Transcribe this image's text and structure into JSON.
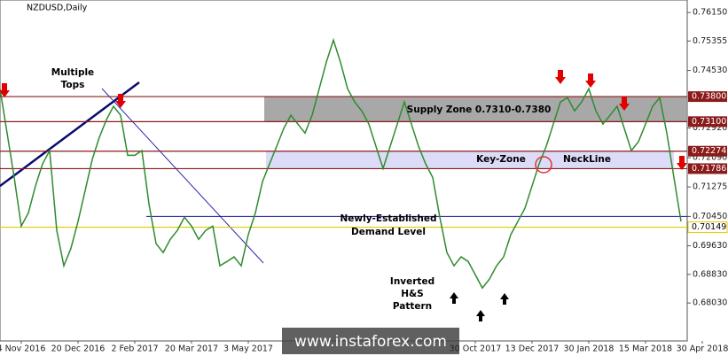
{
  "chart_data": {
    "type": "line",
    "title": "NZDUSD,Daily",
    "color": "#2e8b2e",
    "categories": [
      null,
      null,
      null,
      "4 Nov 2016",
      null,
      null,
      null,
      null,
      null,
      null,
      null,
      "20 Dec 2016",
      null,
      null,
      null,
      null,
      null,
      null,
      null,
      "2 Feb 2017",
      null,
      null,
      null,
      null,
      null,
      null,
      null,
      "20 Mar 2017",
      null,
      null,
      null,
      null,
      null,
      null,
      null,
      "3 May 2017",
      null,
      null,
      null,
      null,
      null,
      null,
      null,
      null,
      null,
      null,
      null,
      null,
      null,
      null,
      null,
      null,
      null,
      null,
      null,
      null,
      null,
      null,
      null,
      null,
      null,
      null,
      null,
      null,
      null,
      null,
      null,
      "30 Oct 2017",
      null,
      null,
      null,
      null,
      null,
      null,
      null,
      "13 Dec 2017",
      null,
      null,
      null,
      null,
      null,
      null,
      null,
      "30 Jan 2018",
      null,
      null,
      null,
      null,
      null,
      null,
      null,
      "15 Mar 2018",
      null,
      null,
      null,
      null,
      null,
      null,
      null,
      "30 Apr 2018"
    ],
    "values": [
      0.7402,
      0.7278,
      0.7154,
      0.7018,
      0.7055,
      0.713,
      0.7192,
      0.7229,
      0.7006,
      0.6907,
      0.6956,
      0.7031,
      0.7117,
      0.7204,
      0.7266,
      0.7315,
      0.7353,
      0.7328,
      0.7216,
      0.7216,
      0.7229,
      0.708,
      0.6969,
      0.6944,
      0.6981,
      0.7006,
      0.7043,
      0.7018,
      0.6981,
      0.7006,
      0.7018,
      0.6907,
      0.6919,
      0.6932,
      0.6907,
      0.6994,
      0.7055,
      0.7142,
      0.7192,
      0.7241,
      0.7291,
      0.7328,
      0.7303,
      0.7278,
      0.7328,
      0.7402,
      0.7476,
      0.7538,
      0.7476,
      0.7402,
      0.7365,
      0.734,
      0.7303,
      0.7241,
      0.7179,
      0.7241,
      0.7303,
      0.7365,
      0.7303,
      0.7241,
      0.7192,
      0.7154,
      0.7043,
      0.6944,
      0.6907,
      0.6932,
      0.6919,
      0.6882,
      0.6845,
      0.687,
      0.6907,
      0.6932,
      0.6994,
      0.7031,
      0.7068,
      0.713,
      0.7192,
      0.7241,
      0.7303,
      0.7365,
      0.7377,
      0.734,
      0.7365,
      0.7402,
      0.734,
      0.7303,
      0.7328,
      0.7353,
      0.7291,
      0.7229,
      0.7254,
      0.7303,
      0.7353,
      0.7377,
      0.7278,
      0.7154,
      0.7031,
      null,
      null,
      null
    ],
    "ylim": [
      0.6697,
      0.765
    ],
    "yticks": [
      {
        "value": 0.7615,
        "label": "0.76150"
      },
      0.75355,
      {
        "value": 0.7453,
        "label": "0.74530"
      },
      {
        "value": 0.7292,
        "label": "0.72920"
      },
      {
        "value": 0.7209,
        "label": "0.72090"
      },
      0.71275,
      {
        "value": 0.7045,
        "label": "0.70450"
      },
      {
        "value": 0.6963,
        "label": "0.69630"
      },
      {
        "value": 0.6883,
        "label": "0.68830"
      },
      {
        "value": 0.6803,
        "label": "0.68030"
      }
    ],
    "levels": [
      {
        "value": 0.738,
        "label": "0.73800",
        "color": "#8b1a1a"
      },
      {
        "value": 0.731,
        "label": "0.73100",
        "color": "#8b1a1a"
      },
      {
        "value": 0.72274,
        "label": "0.72274",
        "color": "#8b1a1a"
      },
      {
        "value": 0.71786,
        "label": "0.71786",
        "color": "#8b1a1a"
      },
      {
        "value": 0.70149,
        "label": "0.70149",
        "color": "#e6c800"
      }
    ],
    "demand_level": 0.7045,
    "annotations": {
      "multiple_tops": [
        "Multiple",
        "Tops"
      ],
      "supply_zone": "Supply Zone 0.7310-0.7380",
      "key_zone": "Key-Zone",
      "neckline": "NeckLine",
      "demand": [
        "Newly-Established",
        "Demand Level"
      ],
      "pattern": [
        "Inverted",
        "H&S",
        "Pattern"
      ]
    },
    "watermark": "www.instaforex.com"
  }
}
